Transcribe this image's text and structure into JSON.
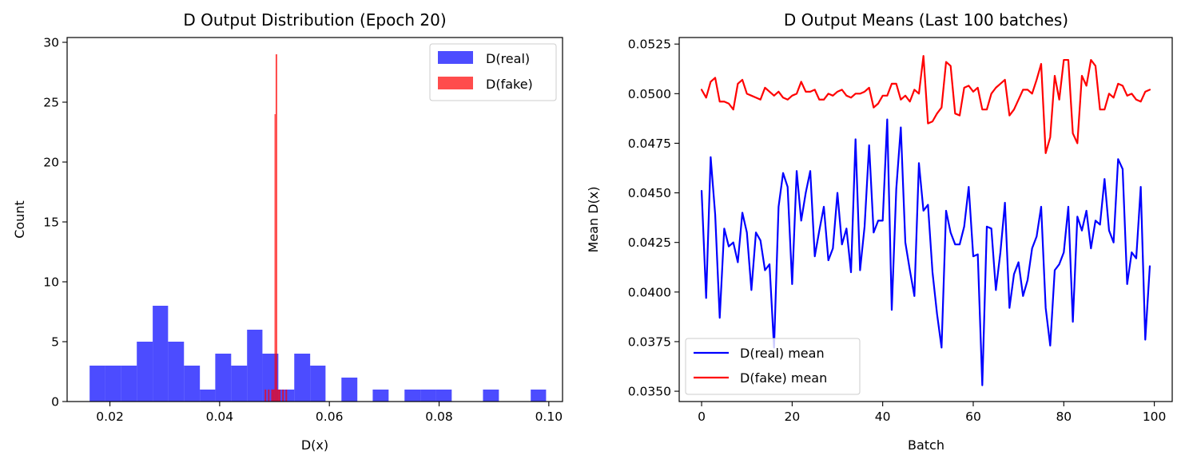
{
  "colors": {
    "real": "#0000ff",
    "fake": "#ff0000",
    "axis": "#000000",
    "legend_border": "#cccccc"
  },
  "chart_data": [
    {
      "type": "histogram",
      "title": "D Output Distribution (Epoch 20)",
      "xlabel": "D(x)",
      "ylabel": "Count",
      "xlim": [
        0.0122,
        0.1025
      ],
      "ylim": [
        0,
        30.4
      ],
      "xticks": [
        0.02,
        0.04,
        0.06,
        0.08,
        0.1
      ],
      "xtick_labels": [
        "0.02",
        "0.04",
        "0.06",
        "0.08",
        "0.10"
      ],
      "yticks": [
        0,
        5,
        10,
        15,
        20,
        25,
        30
      ],
      "ytick_labels": [
        "0",
        "5",
        "10",
        "15",
        "20",
        "25",
        "30"
      ],
      "grid": false,
      "legend": {
        "placement": "upper right",
        "entries": [
          "D(real)",
          "D(fake)"
        ]
      },
      "series": [
        {
          "name": "D(real)",
          "color": "#0000ff",
          "alpha": 0.7,
          "bin_edges": [
            0.0163,
            0.0191,
            0.022,
            0.0249,
            0.0278,
            0.0306,
            0.0335,
            0.0364,
            0.0392,
            0.0421,
            0.045,
            0.0478,
            0.0507,
            0.0536,
            0.0565,
            0.0593,
            0.0622,
            0.0651,
            0.0679,
            0.0708,
            0.0737,
            0.0766,
            0.0794,
            0.0823,
            0.0852,
            0.088,
            0.0909,
            0.0938,
            0.0967,
            0.0995
          ],
          "counts": [
            3,
            3,
            3,
            5,
            8,
            5,
            3,
            1,
            4,
            3,
            6,
            4,
            1,
            4,
            3,
            0,
            2,
            0,
            1,
            0,
            1,
            1,
            1,
            0,
            0,
            1,
            0,
            0,
            1
          ]
        },
        {
          "name": "D(fake)",
          "color": "#ff0000",
          "alpha": 0.7,
          "bin_edges": [
            0.0482,
            0.0485,
            0.0488,
            0.0491,
            0.0494,
            0.0497,
            0.05,
            0.0502,
            0.0505,
            0.0508,
            0.0511,
            0.0514,
            0.0517,
            0.052,
            0.0523
          ],
          "counts": [
            1,
            0,
            1,
            0,
            1,
            1,
            24,
            29,
            1,
            1,
            0,
            1,
            0,
            1
          ]
        }
      ]
    },
    {
      "type": "line",
      "title": "D Output Means (Last 100 batches)",
      "xlabel": "Batch",
      "ylabel": "Mean D(x)",
      "xlim": [
        -4.95,
        103.95
      ],
      "ylim": [
        0.03448,
        0.05283
      ],
      "xticks": [
        0,
        20,
        40,
        60,
        80,
        100
      ],
      "xtick_labels": [
        "0",
        "20",
        "40",
        "60",
        "80",
        "100"
      ],
      "yticks": [
        0.035,
        0.0375,
        0.04,
        0.0425,
        0.045,
        0.0475,
        0.05,
        0.0525
      ],
      "ytick_labels": [
        "0.0350",
        "0.0375",
        "0.0400",
        "0.0425",
        "0.0450",
        "0.0475",
        "0.0500",
        "0.0525"
      ],
      "grid": false,
      "legend": {
        "placement": "lower left",
        "entries": [
          "D(real) mean",
          "D(fake) mean"
        ]
      },
      "series": [
        {
          "name": "D(real) mean",
          "color": "#0000ff",
          "x_start": 0,
          "values": [
            0.0451,
            0.0397,
            0.0468,
            0.0439,
            0.0387,
            0.0432,
            0.0423,
            0.0425,
            0.0415,
            0.044,
            0.043,
            0.0401,
            0.043,
            0.0426,
            0.0411,
            0.0414,
            0.0372,
            0.0443,
            0.046,
            0.0453,
            0.0404,
            0.0461,
            0.0436,
            0.045,
            0.0461,
            0.0418,
            0.0431,
            0.0443,
            0.0416,
            0.0422,
            0.045,
            0.0424,
            0.0432,
            0.041,
            0.0477,
            0.0411,
            0.0433,
            0.0474,
            0.043,
            0.0436,
            0.0436,
            0.0487,
            0.0391,
            0.0452,
            0.0483,
            0.0425,
            0.0411,
            0.0398,
            0.0465,
            0.0441,
            0.0444,
            0.041,
            0.0389,
            0.0372,
            0.0441,
            0.043,
            0.0424,
            0.0424,
            0.0433,
            0.0453,
            0.0418,
            0.0419,
            0.0353,
            0.0433,
            0.0432,
            0.0401,
            0.042,
            0.0445,
            0.0392,
            0.0409,
            0.0415,
            0.0398,
            0.0406,
            0.0422,
            0.0428,
            0.0443,
            0.0392,
            0.0373,
            0.0411,
            0.0414,
            0.042,
            0.0443,
            0.0385,
            0.0438,
            0.0431,
            0.0441,
            0.0422,
            0.0436,
            0.0434,
            0.0457,
            0.0431,
            0.0425,
            0.0467,
            0.0462,
            0.0404,
            0.042,
            0.0417,
            0.0453,
            0.0376,
            0.0413
          ]
        },
        {
          "name": "D(fake) mean",
          "color": "#ff0000",
          "x_start": 0,
          "values": [
            0.0502,
            0.0498,
            0.0506,
            0.0508,
            0.0496,
            0.0496,
            0.0495,
            0.0492,
            0.0505,
            0.0507,
            0.05,
            0.0499,
            0.0498,
            0.0497,
            0.0503,
            0.0501,
            0.0499,
            0.0501,
            0.0498,
            0.0497,
            0.0499,
            0.05,
            0.0506,
            0.0501,
            0.0501,
            0.0502,
            0.0497,
            0.0497,
            0.05,
            0.0499,
            0.0501,
            0.0502,
            0.0499,
            0.0498,
            0.05,
            0.05,
            0.0501,
            0.0503,
            0.0493,
            0.0495,
            0.0499,
            0.0499,
            0.0505,
            0.0505,
            0.0497,
            0.0499,
            0.0496,
            0.0502,
            0.05,
            0.0519,
            0.0485,
            0.0486,
            0.049,
            0.0493,
            0.0516,
            0.0514,
            0.049,
            0.0489,
            0.0503,
            0.0504,
            0.0501,
            0.0503,
            0.0492,
            0.0492,
            0.05,
            0.0503,
            0.0505,
            0.0507,
            0.0489,
            0.0492,
            0.0497,
            0.0502,
            0.0502,
            0.05,
            0.0507,
            0.0515,
            0.047,
            0.0478,
            0.0509,
            0.0497,
            0.0517,
            0.0517,
            0.048,
            0.0475,
            0.0509,
            0.0504,
            0.0517,
            0.0514,
            0.0492,
            0.0492,
            0.05,
            0.0498,
            0.0505,
            0.0504,
            0.0499,
            0.05,
            0.0497,
            0.0496,
            0.0501,
            0.0502
          ]
        }
      ]
    }
  ]
}
